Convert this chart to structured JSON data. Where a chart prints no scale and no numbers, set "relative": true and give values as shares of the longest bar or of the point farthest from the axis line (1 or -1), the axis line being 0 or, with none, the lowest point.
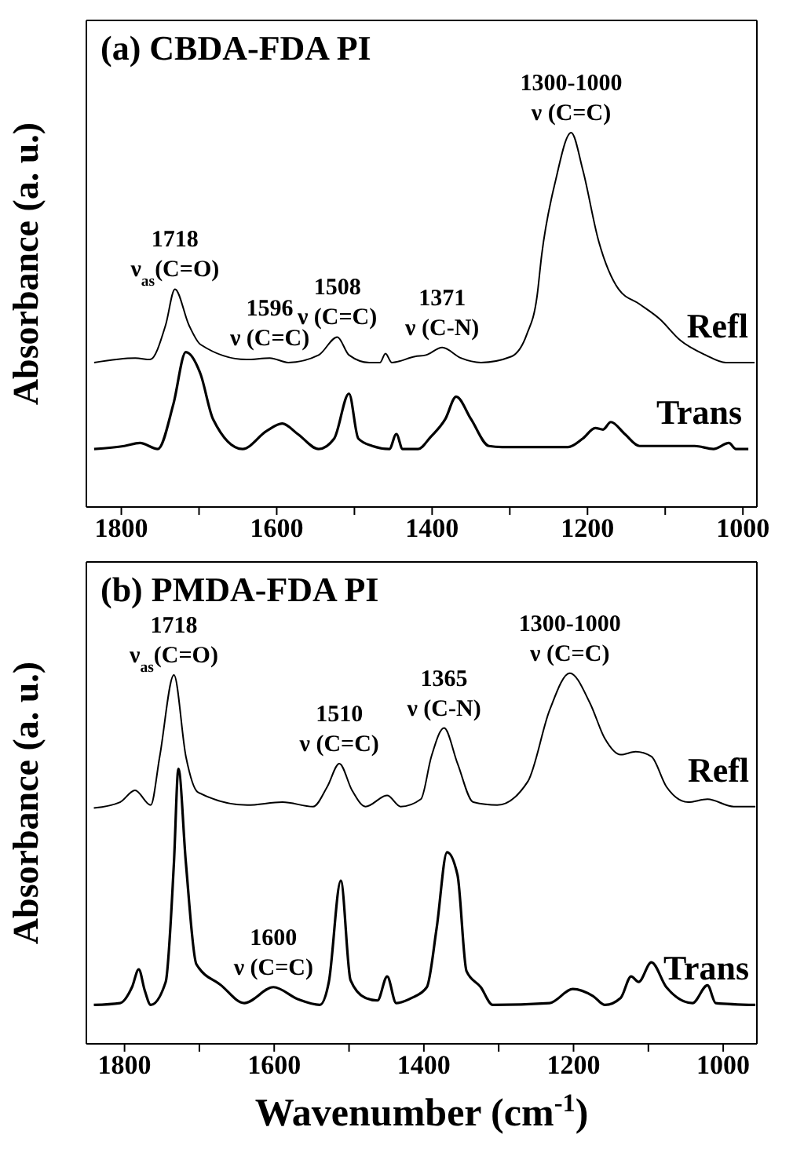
{
  "chart_data": [
    {
      "type": "line",
      "title": "(a) CBDA-FDA PI",
      "ylabel": "Absorbance (a. u.)",
      "relative": true,
      "marker": "none",
      "tick_labels": "x",
      "xlim": [
        1845,
        982
      ],
      "xticks": [
        1800,
        {
          "value": 1700,
          "label": null
        },
        1600,
        {
          "value": 1500,
          "label": null
        },
        1400,
        {
          "value": 1300,
          "label": null
        },
        1200,
        {
          "value": 1100,
          "label": null
        },
        1000
      ],
      "series": [
        {
          "name": "Refl",
          "color": "#000000",
          "x": [
            1835,
            1782,
            1763,
            1743,
            1731,
            1713,
            1698,
            1639,
            1609,
            1585,
            1546,
            1522,
            1507,
            1481,
            1467,
            1460,
            1452,
            1422,
            1408,
            1387,
            1363,
            1337,
            1298,
            1278,
            1265,
            1259,
            1241,
            1221,
            1206,
            1186,
            1160,
            1133,
            1107,
            1081,
            1048,
            1022,
            985
          ],
          "values": [
            0.386,
            0.398,
            0.394,
            0.486,
            0.582,
            0.486,
            0.434,
            0.394,
            0.398,
            0.386,
            0.406,
            0.454,
            0.406,
            0.386,
            0.386,
            0.41,
            0.386,
            0.402,
            0.406,
            0.426,
            0.398,
            0.386,
            0.402,
            0.462,
            0.562,
            0.673,
            0.873,
            1.0,
            0.9,
            0.713,
            0.582,
            0.542,
            0.502,
            0.446,
            0.406,
            0.386,
            0.386
          ]
        },
        {
          "name": "Trans",
          "color": "#000000",
          "x": [
            1835,
            1796,
            1776,
            1753,
            1733,
            1717,
            1698,
            1682,
            1644,
            1613,
            1593,
            1573,
            1546,
            1526,
            1507,
            1495,
            1477,
            1455,
            1446,
            1438,
            1418,
            1402,
            1383,
            1369,
            1350,
            1327,
            1310,
            1225,
            1206,
            1190,
            1180,
            1170,
            1152,
            1133,
            1062,
            1038,
            1018,
            1009,
            993
          ],
          "values": [
            0.155,
            0.163,
            0.171,
            0.155,
            0.275,
            0.414,
            0.355,
            0.235,
            0.155,
            0.203,
            0.223,
            0.195,
            0.155,
            0.183,
            0.303,
            0.183,
            0.163,
            0.155,
            0.195,
            0.155,
            0.155,
            0.187,
            0.235,
            0.295,
            0.235,
            0.163,
            0.16,
            0.16,
            0.183,
            0.211,
            0.207,
            0.227,
            0.195,
            0.163,
            0.163,
            0.155,
            0.171,
            0.155,
            0.155
          ]
        }
      ],
      "annotations": [
        {
          "text": "1718\nν$_{as}$(C=O)",
          "x": 1731,
          "y": 0.582
        },
        {
          "text": "1596\nν (C=C)",
          "x": 1609,
          "y": 0.398
        },
        {
          "text": "1508\nν (C=C)",
          "x": 1522,
          "y": 0.454
        },
        {
          "text": "1371\nν (C-N)",
          "x": 1387,
          "y": 0.426
        },
        {
          "text": "1300-1000\nν (C=C)",
          "x": 1221,
          "y": 1.0
        }
      ]
    },
    {
      "type": "line",
      "title": "(b) PMDA-FDA PI",
      "xlabel": "Wavenumber (cm$^{-1}$)",
      "ylabel": "Absorbance (a. u.)",
      "relative": true,
      "marker": "none",
      "tick_labels": "x",
      "xlim": [
        1851,
        955
      ],
      "xticks": [
        1800,
        {
          "value": 1700,
          "label": null
        },
        1600,
        {
          "value": 1500,
          "label": null
        },
        1400,
        {
          "value": 1300,
          "label": null
        },
        1200,
        {
          "value": 1100,
          "label": null
        },
        1000
      ],
      "series": [
        {
          "name": "Refl",
          "color": "#000000",
          "x": [
            1841,
            1806,
            1786,
            1765,
            1753,
            1734,
            1718,
            1702,
            1636,
            1589,
            1548,
            1529,
            1513,
            1496,
            1478,
            1449,
            1431,
            1404,
            1390,
            1373,
            1355,
            1334,
            1302,
            1261,
            1232,
            1205,
            1178,
            1158,
            1137,
            1117,
            1096,
            1076,
            1047,
            1021,
            986,
            957
          ],
          "values": [
            0.636,
            0.652,
            0.684,
            0.644,
            0.775,
            0.995,
            0.775,
            0.679,
            0.644,
            0.652,
            0.64,
            0.694,
            0.756,
            0.684,
            0.64,
            0.67,
            0.64,
            0.66,
            0.775,
            0.852,
            0.756,
            0.652,
            0.644,
            0.708,
            0.9,
            1.0,
            0.919,
            0.823,
            0.78,
            0.788,
            0.775,
            0.694,
            0.652,
            0.66,
            0.64,
            0.64
          ]
        },
        {
          "name": "Trans",
          "color": "#000000",
          "x": [
            1841,
            1806,
            1790,
            1781,
            1773,
            1765,
            1745,
            1734,
            1728,
            1718,
            1704,
            1671,
            1640,
            1601,
            1568,
            1539,
            1527,
            1511,
            1498,
            1478,
            1462,
            1449,
            1437,
            1416,
            1396,
            1383,
            1369,
            1355,
            1343,
            1324,
            1308,
            1232,
            1201,
            1174,
            1158,
            1137,
            1123,
            1113,
            1096,
            1076,
            1041,
            1021,
            1010,
            957
          ],
          "values": [
            0.105,
            0.11,
            0.153,
            0.201,
            0.144,
            0.105,
            0.167,
            0.488,
            0.742,
            0.488,
            0.215,
            0.158,
            0.11,
            0.153,
            0.12,
            0.105,
            0.167,
            0.44,
            0.172,
            0.124,
            0.117,
            0.182,
            0.11,
            0.124,
            0.153,
            0.311,
            0.517,
            0.455,
            0.196,
            0.153,
            0.105,
            0.11,
            0.148,
            0.129,
            0.105,
            0.124,
            0.182,
            0.167,
            0.22,
            0.153,
            0.11,
            0.158,
            0.11,
            0.105
          ]
        }
      ],
      "annotations": [
        {
          "text": "1718\nν$_{as}$(C=O)",
          "x": 1734,
          "y": 0.995
        },
        {
          "text": "1600\nν (C=C)",
          "x": 1601,
          "y": 0.153
        },
        {
          "text": "1510\nν (C=C)",
          "x": 1513,
          "y": 0.756
        },
        {
          "text": "1365\nν (C-N)",
          "x": 1373,
          "y": 0.852
        },
        {
          "text": "1300-1000\nν (C=C)",
          "x": 1205,
          "y": 1.0
        }
      ]
    }
  ]
}
